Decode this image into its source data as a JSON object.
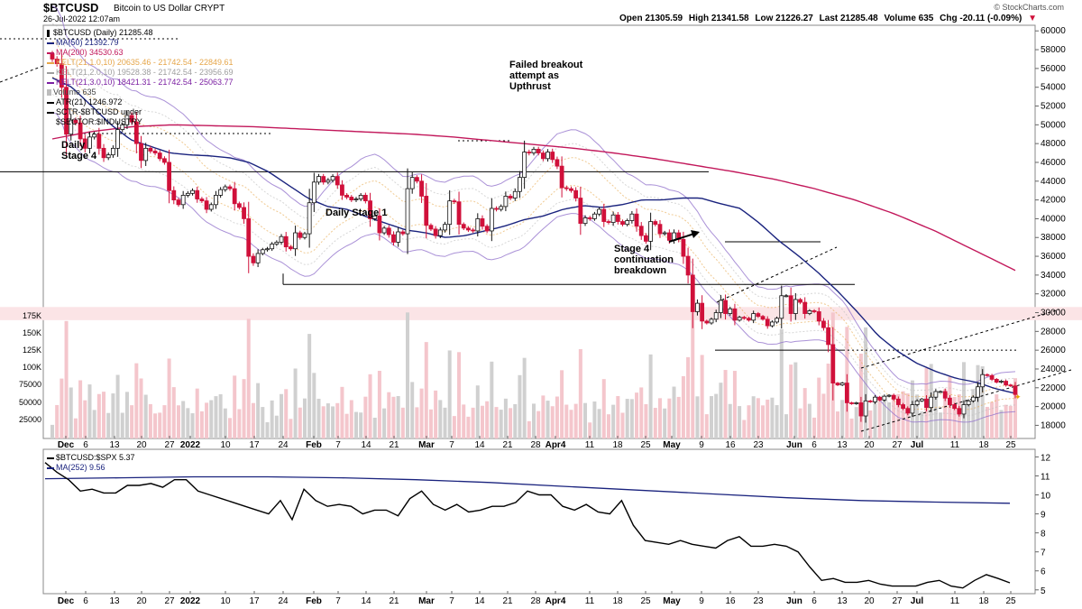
{
  "header": {
    "symbol": "$BTCUSD",
    "subtitle": "Bitcoin to US Dollar  CRYPT",
    "datetime": "26-Jul-2022 12:07am",
    "quote": [
      {
        "label": "Open",
        "value": "21305.59"
      },
      {
        "label": "High",
        "value": "21341.58"
      },
      {
        "label": "Low",
        "value": "21226.27"
      },
      {
        "label": "Last",
        "value": "21285.48"
      },
      {
        "label": "Volume",
        "value": "635"
      },
      {
        "label": "Chg",
        "value": "-20.11 (-0.09%)"
      }
    ],
    "copyright": "© StockCharts.com"
  },
  "colors": {
    "up": "#111111",
    "down": "#d0103a",
    "ma50": "#1a237e",
    "ma200": "#c2185b",
    "kelt": "#9575cd",
    "ratio": "#000000",
    "ma252": "#1a237e",
    "vol_up": "#d0d0d0",
    "vol_down": "#f4c6cc",
    "zone": "#fbe4e6"
  },
  "legend_main": [
    {
      "text": "$BTCUSD (Daily) 21285.48",
      "color": "#000000",
      "icon": "candle-icon"
    },
    {
      "text": "MA(50) 21392.79",
      "color": "#1a237e",
      "icon": "line-icon"
    },
    {
      "text": "MA(200) 34530.63",
      "color": "#c2185b",
      "icon": "line-icon"
    },
    {
      "text": "KELT(21,1.0,10) 20635.46 - 21742.54 - 22849.61",
      "color": "#e6a64a",
      "icon": "line-icon"
    },
    {
      "text": "KELT(21,2.0,10) 19528.38 - 21742.54 - 23956.69",
      "color": "#9e9e9e",
      "icon": "line-icon"
    },
    {
      "text": "KELT(21,3.0,10) 18421.31 - 21742.54 - 25063.77",
      "color": "#7b1fa2",
      "icon": "line-icon"
    },
    {
      "text": "Volume 635",
      "color": "#bdbdbd",
      "icon": "bar-icon"
    },
    {
      "text": "ATR(21) 1246.972",
      "color": "#000000",
      "icon": "line-icon"
    },
    {
      "text": "SCTR-$BTCUSD under",
      "color": "#000000",
      "icon": "line-icon"
    },
    {
      "text": "$SECTOR:$INDUSTRY",
      "color": "#000000",
      "icon": "none"
    }
  ],
  "legend_lower": [
    {
      "text": "$BTCUSD:$SPX 5.37",
      "color": "#000000",
      "icon": "line-icon"
    },
    {
      "text": "MA(252) 9.56",
      "color": "#1a237e",
      "icon": "line-icon"
    }
  ],
  "annotations": [
    {
      "text": "Failed breakout\nattempt as\nUpthrust"
    },
    {
      "text": "Daily\nStage 4"
    },
    {
      "text": "Daily Stage 1"
    },
    {
      "text": "Stage 4\ncontinuation\nbreakdown"
    }
  ],
  "chart_data": [
    {
      "type": "candlestick",
      "title": "$BTCUSD (Daily)",
      "x_ticks": [
        "Dec",
        "6",
        "13",
        "20",
        "27",
        "2022",
        "10",
        "17",
        "24",
        "Feb",
        "7",
        "14",
        "21",
        "Mar",
        "7",
        "14",
        "21",
        "28",
        "Apr4",
        "11",
        "18",
        "25",
        "May",
        "9",
        "16",
        "23",
        "Jun",
        "6",
        "13",
        "20",
        "27",
        "Jul",
        "11",
        "18",
        "25"
      ],
      "y_ticks": [
        18000,
        20000,
        22000,
        24000,
        26000,
        28000,
        30000,
        32000,
        34000,
        36000,
        38000,
        40000,
        42000,
        44000,
        46000,
        48000,
        50000,
        52000,
        54000,
        56000,
        58000,
        60000
      ],
      "ylim": [
        16600,
        60600
      ],
      "close_series": [
        57000,
        56500,
        54000,
        49000,
        50500,
        50200,
        48500,
        47500,
        48700,
        49000,
        47500,
        46500,
        46800,
        47500,
        49500,
        50000,
        51000,
        50300,
        48000,
        46200,
        47500,
        47200,
        47000,
        46400,
        46000,
        43000,
        42000,
        41500,
        42500,
        42700,
        43000,
        42100,
        41900,
        41000,
        41500,
        42500,
        43100,
        43400,
        43200,
        41600,
        41200,
        40000,
        36000,
        35300,
        36300,
        36700,
        36800,
        37300,
        37500,
        38100,
        37000,
        36800,
        38500,
        38000,
        38400,
        41700,
        43900,
        44500,
        43900,
        44100,
        44500,
        43600,
        42500,
        42300,
        42000,
        42100,
        42500,
        41900,
        40000,
        40300,
        38500,
        39000,
        38300,
        37500,
        38600,
        38400,
        43200,
        44400,
        44000,
        42400,
        39300,
        38900,
        38200,
        38800,
        39400,
        41900,
        41800,
        39400,
        39000,
        38800,
        38700,
        40000,
        39200,
        38700,
        41100,
        41000,
        41300,
        42400,
        42200,
        42900,
        44400,
        47100,
        47000,
        47400,
        47000,
        46400,
        47100,
        46300,
        45600,
        43300,
        43200,
        43000,
        42200,
        39500,
        40100,
        40000,
        40500,
        41000,
        39700,
        39600,
        40400,
        39700,
        39400,
        39800,
        40500,
        39200,
        38200,
        37600,
        39700,
        39400,
        38400,
        38500,
        37700,
        38500,
        37800,
        36000,
        34000,
        30100,
        31000,
        29100,
        28900,
        29300,
        30000,
        31300,
        29900,
        30400,
        29200,
        29500,
        29400,
        29200,
        29900,
        29600,
        29300,
        28600,
        29000,
        29400,
        31800,
        31800,
        29900,
        31400,
        31100,
        29900,
        30200,
        30100,
        29100,
        28400,
        26600,
        22500,
        22300,
        22500,
        20400,
        20300,
        20400,
        19000,
        20600,
        20500,
        21000,
        20700,
        21100,
        21200,
        20800,
        20200,
        19800,
        19300,
        20200,
        20600,
        20800,
        19900,
        21000,
        21600,
        21600,
        20900,
        20200,
        19800,
        19200,
        20200,
        20600,
        21000,
        22100,
        23400,
        23300,
        22900,
        22600,
        22700,
        22300,
        22200,
        21285
      ],
      "ma50_approx": [
        55000,
        54000,
        52000,
        50000,
        48400,
        47700,
        47000,
        46800,
        46700,
        46500,
        46000,
        45000,
        43600,
        42200,
        41300,
        41000,
        40200,
        39500,
        38800,
        38500,
        38000,
        38200,
        38700,
        39200,
        39900,
        40300,
        41000,
        41400,
        41200,
        41500,
        42000,
        42000,
        42200,
        42200,
        41600,
        41100,
        39500,
        37600,
        36000,
        34200,
        32200,
        30000,
        27600,
        25900,
        24600,
        23700,
        23000,
        22600,
        21900,
        21400
      ],
      "ma200_approx": [
        48500,
        49300,
        49800,
        50000,
        49900,
        49800,
        49600,
        49400,
        49200,
        49000,
        48700,
        48300,
        47900,
        47500,
        47000,
        46400,
        45700,
        45000,
        44200,
        43200,
        42000,
        40500,
        38700,
        36600,
        34500
      ],
      "horizontal_lines": [
        45000,
        33000,
        26000
      ],
      "highlight_zone": [
        29200,
        30600
      ],
      "volume_axis_ticks": [
        "25000",
        "50000",
        "75000",
        "100K",
        "125K",
        "150K",
        "175K"
      ],
      "legend_placement": "top-left"
    },
    {
      "type": "line",
      "title": "$BTCUSD:$SPX",
      "y_ticks": [
        5,
        6,
        7,
        8,
        9,
        10,
        11,
        12
      ],
      "ylim": [
        4.8,
        12.4
      ],
      "ratio_series": [
        11.7,
        11.2,
        10.8,
        10.2,
        10.3,
        10.1,
        10.1,
        10.5,
        10.5,
        10.6,
        10.4,
        10.8,
        10.8,
        10.2,
        10.0,
        9.8,
        9.6,
        9.4,
        9.2,
        9.0,
        9.7,
        8.7,
        10.3,
        9.7,
        9.4,
        9.5,
        9.4,
        9.0,
        9.2,
        9.2,
        8.9,
        9.8,
        10.2,
        9.5,
        9.2,
        9.5,
        9.1,
        9.2,
        9.4,
        9.4,
        9.6,
        10.2,
        10.0,
        10.0,
        9.4,
        9.2,
        9.5,
        9.1,
        9.0,
        9.7,
        8.4,
        7.6,
        7.5,
        7.4,
        7.6,
        7.4,
        7.3,
        7.2,
        7.6,
        7.8,
        7.3,
        7.3,
        7.4,
        7.3,
        7.0,
        6.2,
        5.5,
        5.6,
        5.4,
        5.4,
        5.5,
        5.3,
        5.2,
        5.2,
        5.2,
        5.4,
        5.5,
        5.2,
        5.1,
        5.5,
        5.8,
        5.6,
        5.37
      ],
      "ma252_approx": [
        10.85,
        10.9,
        10.95,
        10.95,
        10.9,
        10.8,
        10.65,
        10.45,
        10.25,
        10.05,
        9.85,
        9.7,
        9.62,
        9.56
      ],
      "legend_placement": "top-left"
    }
  ]
}
